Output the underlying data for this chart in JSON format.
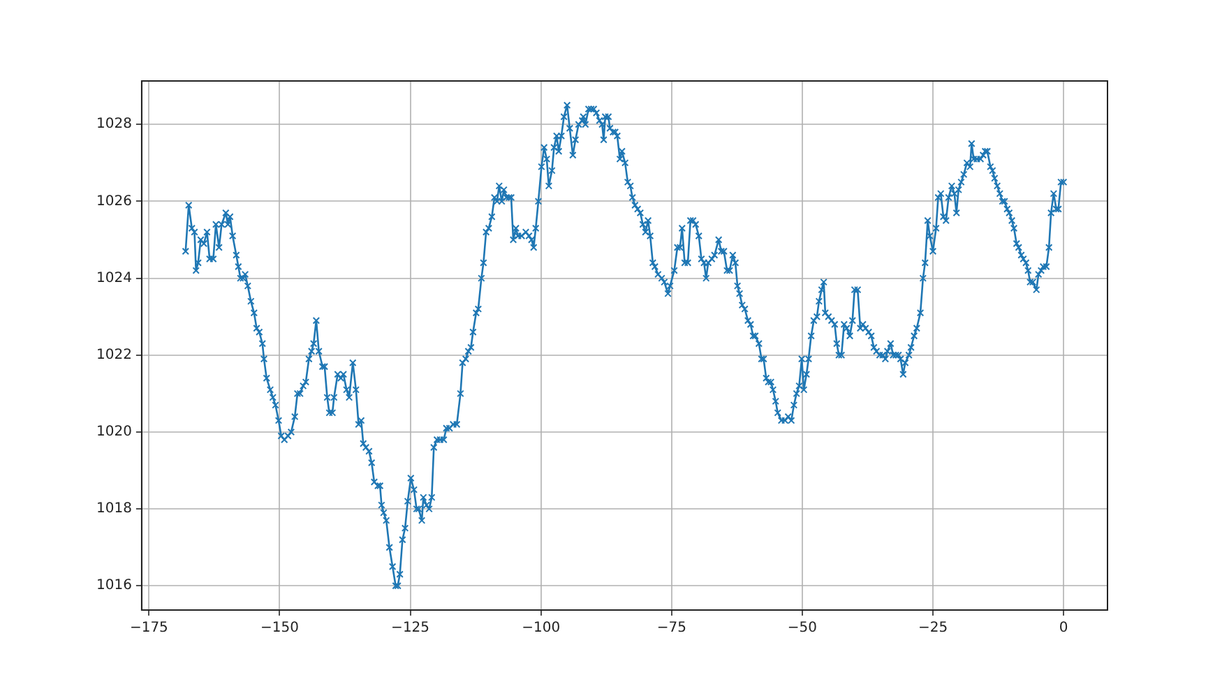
{
  "chart_data": {
    "type": "line",
    "x": [
      -168.0,
      -167.4,
      -166.8,
      -166.3,
      -166.0,
      -165.6,
      -165.1,
      -164.5,
      -163.9,
      -163.4,
      -162.7,
      -162.2,
      -161.6,
      -161.1,
      -160.3,
      -159.9,
      -159.5,
      -159.0,
      -158.3,
      -157.9,
      -157.5,
      -157.0,
      -156.6,
      -156.1,
      -155.5,
      -154.9,
      -154.4,
      -153.9,
      -153.3,
      -153.0,
      -152.5,
      -151.8,
      -151.3,
      -150.8,
      -150.2,
      -149.7,
      -149.1,
      -148.4,
      -147.8,
      -147.1,
      -146.6,
      -146.1,
      -145.5,
      -145.0,
      -144.4,
      -143.9,
      -143.5,
      -143.0,
      -142.5,
      -141.8,
      -141.4,
      -140.9,
      -140.5,
      -139.9,
      -139.6,
      -138.9,
      -138.3,
      -137.8,
      -137.2,
      -136.7,
      -136.0,
      -135.4,
      -134.9,
      -134.4,
      -134.0,
      -133.5,
      -132.9,
      -132.4,
      -131.9,
      -131.2,
      -130.8,
      -130.5,
      -130.1,
      -129.6,
      -129.0,
      -128.4,
      -127.8,
      -127.4,
      -127.0,
      -126.5,
      -126.0,
      -125.5,
      -124.9,
      -124.3,
      -123.8,
      -123.4,
      -122.8,
      -122.5,
      -121.9,
      -121.4,
      -120.9,
      -120.5,
      -119.9,
      -119.3,
      -118.6,
      -118.1,
      -117.5,
      -116.8,
      -116.1,
      -115.4,
      -115.0,
      -114.4,
      -113.9,
      -113.4,
      -113.0,
      -112.4,
      -112.0,
      -111.4,
      -111.0,
      -110.5,
      -110.0,
      -109.4,
      -108.9,
      -108.4,
      -108.0,
      -107.5,
      -107.1,
      -106.6,
      -106.1,
      -105.7,
      -105.3,
      -104.8,
      -104.4,
      -103.7,
      -102.9,
      -102.3,
      -101.8,
      -101.4,
      -101.0,
      -100.5,
      -99.9,
      -99.4,
      -98.9,
      -98.5,
      -97.9,
      -97.5,
      -97.0,
      -96.6,
      -96.1,
      -95.6,
      -95.0,
      -94.5,
      -93.9,
      -93.4,
      -92.8,
      -92.1,
      -91.9,
      -91.5,
      -90.9,
      -90.4,
      -89.9,
      -89.4,
      -88.8,
      -88.3,
      -88.0,
      -87.7,
      -87.1,
      -86.8,
      -86.2,
      -85.8,
      -85.4,
      -84.9,
      -84.5,
      -83.9,
      -83.4,
      -82.9,
      -82.5,
      -82.0,
      -81.5,
      -81.0,
      -80.5,
      -80.0,
      -79.5,
      -79.1,
      -78.6,
      -78.2,
      -77.6,
      -76.9,
      -76.4,
      -75.7,
      -75.3,
      -74.5,
      -73.9,
      -73.4,
      -73.0,
      -72.5,
      -71.9,
      -71.4,
      -70.9,
      -70.4,
      -69.8,
      -69.3,
      -68.8,
      -68.4,
      -68.0,
      -67.3,
      -66.8,
      -66.0,
      -65.5,
      -65.0,
      -64.4,
      -63.9,
      -63.3,
      -62.8,
      -62.4,
      -62.0,
      -61.5,
      -61.0,
      -60.4,
      -59.9,
      -59.4,
      -59.0,
      -58.3,
      -57.8,
      -57.4,
      -56.9,
      -56.5,
      -56.0,
      -55.6,
      -55.1,
      -54.7,
      -54.0,
      -53.3,
      -52.7,
      -52.1,
      -51.6,
      -51.1,
      -50.6,
      -50.1,
      -49.7,
      -49.2,
      -48.8,
      -48.3,
      -47.8,
      -47.2,
      -46.8,
      -46.3,
      -45.9,
      -45.6,
      -45.0,
      -44.4,
      -43.8,
      -43.4,
      -43.0,
      -42.5,
      -42.0,
      -41.5,
      -40.9,
      -40.4,
      -40.0,
      -39.4,
      -38.9,
      -38.4,
      -37.9,
      -37.3,
      -36.8,
      -36.3,
      -35.8,
      -35.2,
      -34.6,
      -34.1,
      -33.7,
      -33.1,
      -32.6,
      -32.1,
      -31.6,
      -31.2,
      -30.7,
      -30.3,
      -29.6,
      -29.2,
      -28.6,
      -28.1,
      -27.4,
      -26.9,
      -26.5,
      -26.0,
      -25.6,
      -25.0,
      -24.4,
      -24.0,
      -23.5,
      -23.0,
      -22.5,
      -22.0,
      -21.4,
      -20.9,
      -20.5,
      -20.1,
      -19.6,
      -19.1,
      -18.5,
      -17.9,
      -17.6,
      -17.2,
      -16.6,
      -15.9,
      -15.4,
      -15.0,
      -14.6,
      -14.0,
      -13.6,
      -13.2,
      -12.7,
      -12.2,
      -11.7,
      -11.3,
      -10.8,
      -10.4,
      -9.9,
      -9.5,
      -9.0,
      -8.6,
      -8.1,
      -7.7,
      -7.2,
      -6.8,
      -6.4,
      -5.9,
      -5.2,
      -4.8,
      -4.3,
      -3.9,
      -3.3,
      -2.8,
      -2.4,
      -1.9,
      -1.4,
      -1.0,
      -0.5,
      0.0
    ],
    "values": [
      1024.7,
      1025.9,
      1025.3,
      1025.2,
      1024.2,
      1024.4,
      1025.0,
      1024.9,
      1025.2,
      1024.5,
      1024.5,
      1025.4,
      1024.8,
      1025.4,
      1025.7,
      1025.4,
      1025.6,
      1025.1,
      1024.6,
      1024.3,
      1024.0,
      1024.0,
      1024.1,
      1023.8,
      1023.4,
      1023.1,
      1022.7,
      1022.6,
      1022.3,
      1021.9,
      1021.4,
      1021.1,
      1020.9,
      1020.7,
      1020.3,
      1019.9,
      1019.8,
      1019.9,
      1020.0,
      1020.4,
      1021.0,
      1021.0,
      1021.2,
      1021.3,
      1021.9,
      1022.1,
      1022.3,
      1022.9,
      1022.1,
      1021.7,
      1021.7,
      1020.9,
      1020.5,
      1020.5,
      1020.9,
      1021.5,
      1021.4,
      1021.5,
      1021.1,
      1020.9,
      1021.8,
      1021.1,
      1020.2,
      1020.3,
      1019.7,
      1019.6,
      1019.5,
      1019.2,
      1018.7,
      1018.6,
      1018.6,
      1018.1,
      1017.9,
      1017.7,
      1017.0,
      1016.5,
      1016.0,
      1016.0,
      1016.3,
      1017.2,
      1017.5,
      1018.2,
      1018.8,
      1018.5,
      1018.0,
      1018.0,
      1017.7,
      1018.3,
      1018.1,
      1018.0,
      1018.3,
      1019.6,
      1019.8,
      1019.8,
      1019.8,
      1020.1,
      1020.1,
      1020.2,
      1020.2,
      1021.0,
      1021.8,
      1021.9,
      1022.1,
      1022.2,
      1022.6,
      1023.1,
      1023.2,
      1024.0,
      1024.4,
      1025.2,
      1025.3,
      1025.6,
      1026.1,
      1026.0,
      1026.4,
      1026.0,
      1026.3,
      1026.1,
      1026.1,
      1026.1,
      1025.0,
      1025.3,
      1025.1,
      1025.1,
      1025.2,
      1025.1,
      1025.0,
      1024.8,
      1025.3,
      1026.0,
      1026.9,
      1027.4,
      1027.1,
      1026.4,
      1026.8,
      1027.4,
      1027.7,
      1027.3,
      1027.7,
      1028.2,
      1028.5,
      1027.9,
      1027.2,
      1027.6,
      1028.0,
      1028.1,
      1028.2,
      1028.0,
      1028.4,
      1028.4,
      1028.4,
      1028.3,
      1028.1,
      1028.0,
      1027.6,
      1028.2,
      1028.2,
      1027.9,
      1027.8,
      1027.8,
      1027.7,
      1027.1,
      1027.3,
      1027.0,
      1026.5,
      1026.4,
      1026.1,
      1025.9,
      1025.8,
      1025.7,
      1025.4,
      1025.2,
      1025.5,
      1025.1,
      1024.4,
      1024.3,
      1024.1,
      1024.0,
      1023.9,
      1023.6,
      1023.8,
      1024.2,
      1024.8,
      1024.8,
      1025.3,
      1024.4,
      1024.4,
      1025.5,
      1025.5,
      1025.4,
      1025.1,
      1024.5,
      1024.4,
      1024.0,
      1024.4,
      1024.5,
      1024.6,
      1025.0,
      1024.7,
      1024.7,
      1024.2,
      1024.2,
      1024.6,
      1024.4,
      1023.8,
      1023.6,
      1023.3,
      1023.2,
      1022.9,
      1022.8,
      1022.5,
      1022.5,
      1022.3,
      1021.9,
      1021.9,
      1021.4,
      1021.3,
      1021.3,
      1021.1,
      1020.8,
      1020.5,
      1020.3,
      1020.3,
      1020.4,
      1020.3,
      1020.7,
      1021.0,
      1021.2,
      1021.9,
      1021.1,
      1021.5,
      1021.9,
      1022.5,
      1022.9,
      1023.0,
      1023.4,
      1023.7,
      1023.9,
      1023.1,
      1023.0,
      1022.9,
      1022.8,
      1022.3,
      1022.0,
      1022.0,
      1022.8,
      1022.7,
      1022.5,
      1022.9,
      1023.7,
      1023.7,
      1022.7,
      1022.8,
      1022.7,
      1022.6,
      1022.5,
      1022.2,
      1022.1,
      1022.0,
      1022.0,
      1021.9,
      1022.1,
      1022.3,
      1022.0,
      1022.0,
      1022.0,
      1021.9,
      1021.5,
      1021.8,
      1022.0,
      1022.2,
      1022.5,
      1022.7,
      1023.1,
      1024.0,
      1024.4,
      1025.5,
      1025.1,
      1024.7,
      1025.3,
      1026.1,
      1026.2,
      1025.6,
      1025.5,
      1026.1,
      1026.4,
      1026.2,
      1025.7,
      1026.3,
      1026.5,
      1026.7,
      1027.0,
      1026.9,
      1027.5,
      1027.1,
      1027.1,
      1027.1,
      1027.2,
      1027.3,
      1027.3,
      1026.9,
      1026.8,
      1026.6,
      1026.4,
      1026.2,
      1026.0,
      1026.0,
      1025.8,
      1025.7,
      1025.5,
      1025.3,
      1024.9,
      1024.8,
      1024.6,
      1024.5,
      1024.4,
      1024.2,
      1023.9,
      1023.9,
      1023.7,
      1024.1,
      1024.2,
      1024.3,
      1024.3,
      1024.8,
      1025.7,
      1026.2,
      1025.8,
      1025.8,
      1026.5,
      1026.5
    ],
    "color": "#1f77b4",
    "marker": "cross",
    "line_style": "solid",
    "grid": true,
    "xlim": [
      -176.4,
      8.4
    ],
    "ylim": [
      1015.37,
      1029.13
    ],
    "xticks": [
      {
        "value": -175,
        "label": "−175"
      },
      {
        "value": -150,
        "label": "−150"
      },
      {
        "value": -125,
        "label": "−125"
      },
      {
        "value": -100,
        "label": "−100"
      },
      {
        "value": -75,
        "label": "−75"
      },
      {
        "value": -50,
        "label": "−50"
      },
      {
        "value": -25,
        "label": "−25"
      },
      0
    ],
    "yticks": [
      1016,
      1018,
      1020,
      1022,
      1024,
      1026,
      1028
    ]
  }
}
